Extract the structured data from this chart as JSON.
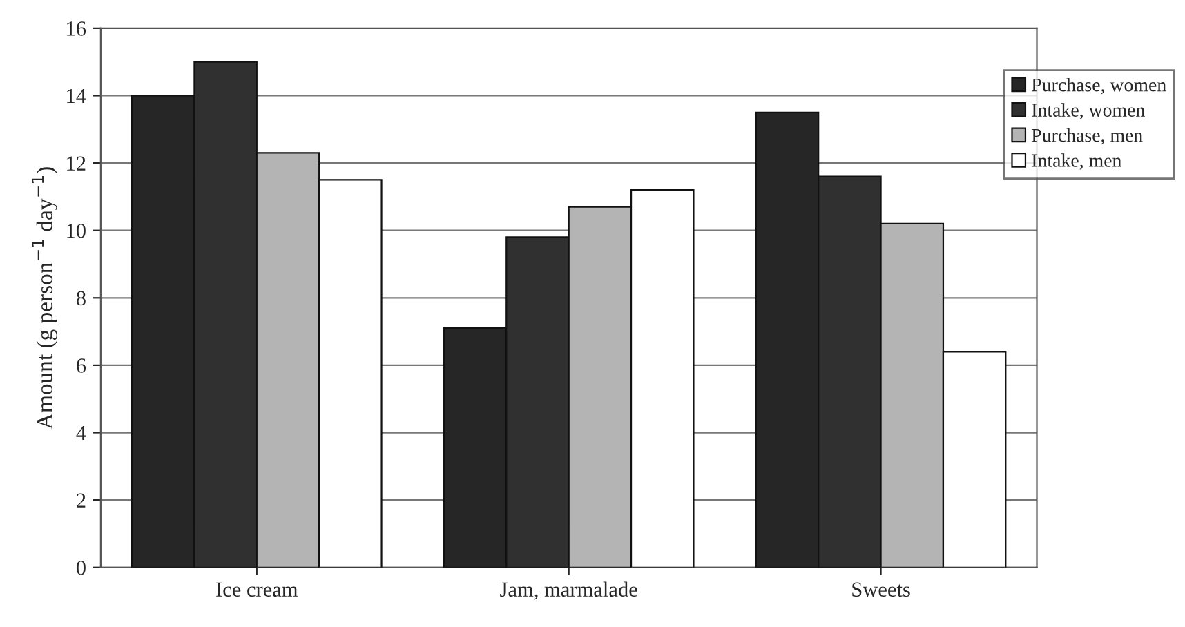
{
  "chart_data": {
    "type": "bar",
    "ylabel": "Amount (g person$^{−1}$ day$^{−1}$)",
    "categories": [
      "Ice cream",
      "Jam, marmalade",
      "Sweets"
    ],
    "series": [
      {
        "name": "Purchase, women",
        "color": "#262626",
        "values": [
          14.0,
          7.1,
          13.5
        ]
      },
      {
        "name": "Intake, women",
        "color": "#303030",
        "values": [
          15.0,
          9.8,
          11.6
        ]
      },
      {
        "name": "Purchase, men",
        "color": "#b4b4b4",
        "values": [
          12.3,
          10.7,
          10.2
        ]
      },
      {
        "name": "Intake, men",
        "color": "#ffffff",
        "values": [
          11.5,
          11.2,
          6.4
        ]
      }
    ],
    "ylim": [
      0,
      16
    ],
    "yticks": [
      0,
      2,
      4,
      6,
      8,
      10,
      12,
      14,
      16
    ],
    "grid": "y",
    "legend": "top right"
  }
}
